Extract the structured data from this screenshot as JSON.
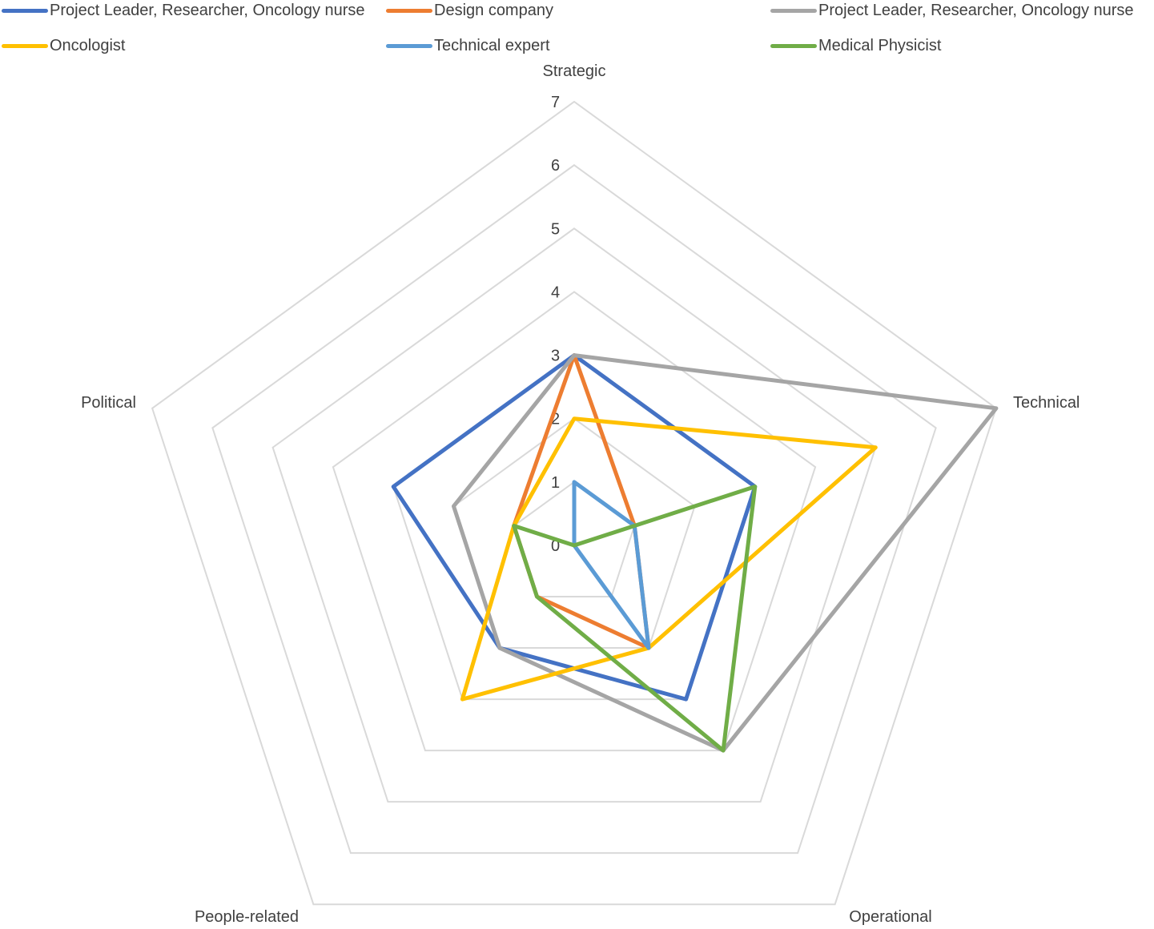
{
  "chart_data": {
    "type": "radar",
    "title": "",
    "axes": [
      "Strategic",
      "Technical",
      "Operational",
      "People-related",
      "Political"
    ],
    "rlim": [
      0,
      7
    ],
    "ticks": [
      0,
      1,
      2,
      3,
      4,
      5,
      6,
      7
    ],
    "grid": true,
    "legend_position": "top",
    "series": [
      {
        "name": "Project Leader, Researcher, Oncology nurse",
        "color": "#4472C4",
        "values": [
          3,
          3,
          3,
          2,
          3
        ]
      },
      {
        "name": "Design company",
        "color": "#ED7D31",
        "values": [
          3,
          1,
          2,
          1,
          1
        ]
      },
      {
        "name": "Project Leader, Researcher, Oncology nurse",
        "color": "#A5A5A5",
        "values": [
          3,
          7,
          4,
          2,
          2
        ]
      },
      {
        "name": "Oncologist",
        "color": "#FFC000",
        "values": [
          2,
          5,
          2,
          3,
          1
        ]
      },
      {
        "name": "Technical expert",
        "color": "#5B9BD5",
        "values": [
          1,
          1,
          2,
          0,
          0
        ]
      },
      {
        "name": "Medical Physicist",
        "color": "#70AD47",
        "values": [
          0,
          3,
          4,
          1,
          1
        ]
      }
    ]
  }
}
